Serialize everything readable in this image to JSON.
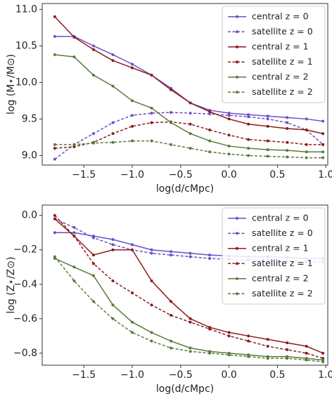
{
  "chart_data": [
    {
      "type": "line",
      "xlabel": "log(d/cMpc)",
      "ylabel": "log (M⋆/M⊙)",
      "x": [
        -1.8,
        -1.6,
        -1.4,
        -1.2,
        -1.0,
        -0.8,
        -0.6,
        -0.4,
        -0.2,
        0.0,
        0.2,
        0.4,
        0.6,
        0.8,
        0.97
      ],
      "xlim": [
        -1.93,
        1.02
      ],
      "xticks": [
        {
          "value": -1.5,
          "label": "−1.5"
        },
        {
          "value": -1.0,
          "label": "−1.0"
        },
        {
          "value": -0.5,
          "label": "−0.5"
        },
        {
          "value": 0.0,
          "label": "0.0"
        },
        {
          "value": 0.5,
          "label": "0.5"
        },
        {
          "value": 1.0,
          "label": "1.0"
        }
      ],
      "ylim": [
        8.87,
        11.08
      ],
      "yticks": [
        {
          "value": 9.0,
          "label": "9.0"
        },
        {
          "value": 9.5,
          "label": "9.5"
        },
        {
          "value": 10.0,
          "label": "10.0"
        },
        {
          "value": 10.5,
          "label": "10.5"
        },
        {
          "value": 11.0,
          "label": "11.0"
        }
      ],
      "legend": "upper right",
      "series": [
        {
          "name": "central z = 0",
          "color": "#6a4fc8",
          "linestyle": "solid",
          "values": [
            10.63,
            10.63,
            10.5,
            10.38,
            10.25,
            10.1,
            9.92,
            9.72,
            9.62,
            9.58,
            9.56,
            9.54,
            9.52,
            9.5,
            9.47
          ]
        },
        {
          "name": "satellite z = 0",
          "color": "#6a4fc8",
          "linestyle": "dashed",
          "values": [
            8.95,
            9.15,
            9.3,
            9.45,
            9.55,
            9.58,
            9.59,
            9.58,
            9.57,
            9.55,
            9.53,
            9.5,
            9.45,
            9.35,
            9.15
          ]
        },
        {
          "name": "central z = 1",
          "color": "#8b1c1c",
          "linestyle": "solid",
          "values": [
            10.9,
            10.62,
            10.45,
            10.3,
            10.2,
            10.1,
            9.9,
            9.72,
            9.6,
            9.5,
            9.43,
            9.4,
            9.37,
            9.35,
            9.3
          ]
        },
        {
          "name": "satellite z = 1",
          "color": "#8b1c1c",
          "linestyle": "dashed",
          "values": [
            9.1,
            9.12,
            9.18,
            9.3,
            9.4,
            9.45,
            9.46,
            9.43,
            9.35,
            9.28,
            9.22,
            9.2,
            9.18,
            9.15,
            9.15
          ]
        },
        {
          "name": "central z = 2",
          "color": "#5b7b3c",
          "linestyle": "solid",
          "values": [
            10.38,
            10.35,
            10.1,
            9.95,
            9.75,
            9.65,
            9.45,
            9.3,
            9.2,
            9.13,
            9.1,
            9.08,
            9.07,
            9.05,
            9.05
          ]
        },
        {
          "name": "satellite z = 2",
          "color": "#5b7b3c",
          "linestyle": "dashed",
          "values": [
            9.15,
            9.15,
            9.17,
            9.18,
            9.2,
            9.2,
            9.15,
            9.1,
            9.05,
            9.02,
            9.0,
            8.99,
            8.98,
            8.97,
            8.97
          ]
        }
      ]
    },
    {
      "type": "line",
      "xlabel": "log(d/cMpc)",
      "ylabel": "log (Z⋆/Z⊙)",
      "x": [
        -1.8,
        -1.6,
        -1.4,
        -1.2,
        -1.0,
        -0.8,
        -0.6,
        -0.4,
        -0.2,
        0.0,
        0.2,
        0.4,
        0.6,
        0.8,
        0.97
      ],
      "xlim": [
        -1.93,
        1.02
      ],
      "xticks": [
        {
          "value": -1.5,
          "label": "−1.5"
        },
        {
          "value": -1.0,
          "label": "−1.0"
        },
        {
          "value": -0.5,
          "label": "−0.5"
        },
        {
          "value": 0.0,
          "label": "0.0"
        },
        {
          "value": 0.5,
          "label": "0.5"
        },
        {
          "value": 1.0,
          "label": "1.0"
        }
      ],
      "ylim": [
        -0.87,
        0.06
      ],
      "yticks": [
        {
          "value": -0.8,
          "label": "−0.8"
        },
        {
          "value": -0.6,
          "label": "−0.6"
        },
        {
          "value": -0.4,
          "label": "−0.4"
        },
        {
          "value": -0.2,
          "label": "−0.2"
        },
        {
          "value": 0.0,
          "label": "0.0"
        }
      ],
      "legend": "upper right",
      "series": [
        {
          "name": "central z = 0",
          "color": "#6a4fc8",
          "linestyle": "solid",
          "values": [
            -0.1,
            -0.1,
            -0.12,
            -0.14,
            -0.17,
            -0.2,
            -0.21,
            -0.22,
            -0.23,
            -0.235,
            -0.24,
            -0.24,
            -0.245,
            -0.25,
            -0.25
          ]
        },
        {
          "name": "satellite z = 0",
          "color": "#6a4fc8",
          "linestyle": "dashed",
          "values": [
            -0.02,
            -0.07,
            -0.13,
            -0.17,
            -0.2,
            -0.22,
            -0.23,
            -0.24,
            -0.25,
            -0.255,
            -0.26,
            -0.26,
            -0.265,
            -0.27,
            -0.27
          ]
        },
        {
          "name": "central z = 1",
          "color": "#8b1c1c",
          "linestyle": "solid",
          "values": [
            -0.02,
            -0.12,
            -0.23,
            -0.2,
            -0.2,
            -0.38,
            -0.5,
            -0.6,
            -0.65,
            -0.68,
            -0.7,
            -0.72,
            -0.74,
            -0.76,
            -0.8
          ]
        },
        {
          "name": "satellite z = 1",
          "color": "#8b1c1c",
          "linestyle": "dashed",
          "values": [
            0.0,
            -0.12,
            -0.28,
            -0.38,
            -0.45,
            -0.52,
            -0.58,
            -0.62,
            -0.66,
            -0.7,
            -0.73,
            -0.76,
            -0.78,
            -0.8,
            -0.83
          ]
        },
        {
          "name": "central z = 2",
          "color": "#5b7b3c",
          "linestyle": "solid",
          "values": [
            -0.25,
            -0.3,
            -0.35,
            -0.52,
            -0.62,
            -0.68,
            -0.73,
            -0.77,
            -0.79,
            -0.8,
            -0.81,
            -0.82,
            -0.82,
            -0.83,
            -0.84
          ]
        },
        {
          "name": "satellite z = 2",
          "color": "#5b7b3c",
          "linestyle": "dashed",
          "values": [
            -0.24,
            -0.38,
            -0.5,
            -0.6,
            -0.68,
            -0.73,
            -0.77,
            -0.79,
            -0.8,
            -0.81,
            -0.82,
            -0.83,
            -0.83,
            -0.84,
            -0.85
          ]
        }
      ]
    }
  ]
}
